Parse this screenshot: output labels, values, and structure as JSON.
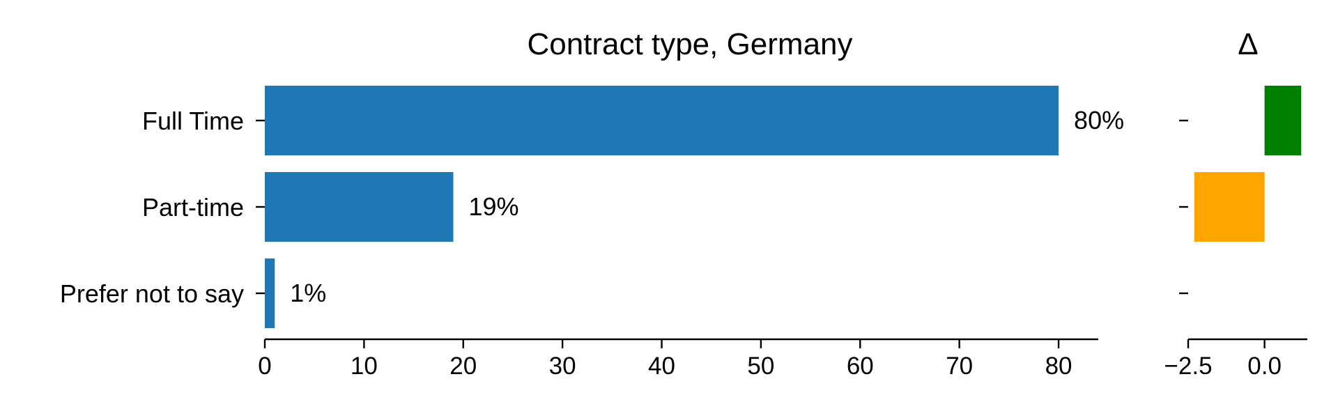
{
  "chart_data": [
    {
      "type": "bar",
      "orientation": "horizontal",
      "title": "Contract type, Germany",
      "categories": [
        "Full Time",
        "Part-time",
        "Prefer not to say"
      ],
      "values": [
        80,
        19,
        1
      ],
      "value_labels": [
        "80%",
        "19%",
        "1%"
      ],
      "xlim": [
        0,
        84
      ],
      "xticks": [
        0,
        10,
        20,
        30,
        40,
        50,
        60,
        70,
        80
      ],
      "xtick_labels": [
        "0",
        "10",
        "20",
        "30",
        "40",
        "50",
        "60",
        "70",
        "80"
      ],
      "color": "#1f77b4",
      "xlabel": "",
      "ylabel": ""
    },
    {
      "type": "bar",
      "orientation": "horizontal",
      "title": "Δ",
      "categories": [
        "Full Time",
        "Part-time",
        "Prefer not to say"
      ],
      "values": [
        1.2,
        -2.3,
        0
      ],
      "colors": [
        "#008000",
        "#ffa500",
        "#ffa500"
      ],
      "xlim": [
        -2.5,
        1.4
      ],
      "xticks": [
        -2.5,
        0.0
      ],
      "xtick_labels": [
        "−2.5",
        "0.0"
      ],
      "xlabel": "",
      "ylabel": ""
    }
  ]
}
